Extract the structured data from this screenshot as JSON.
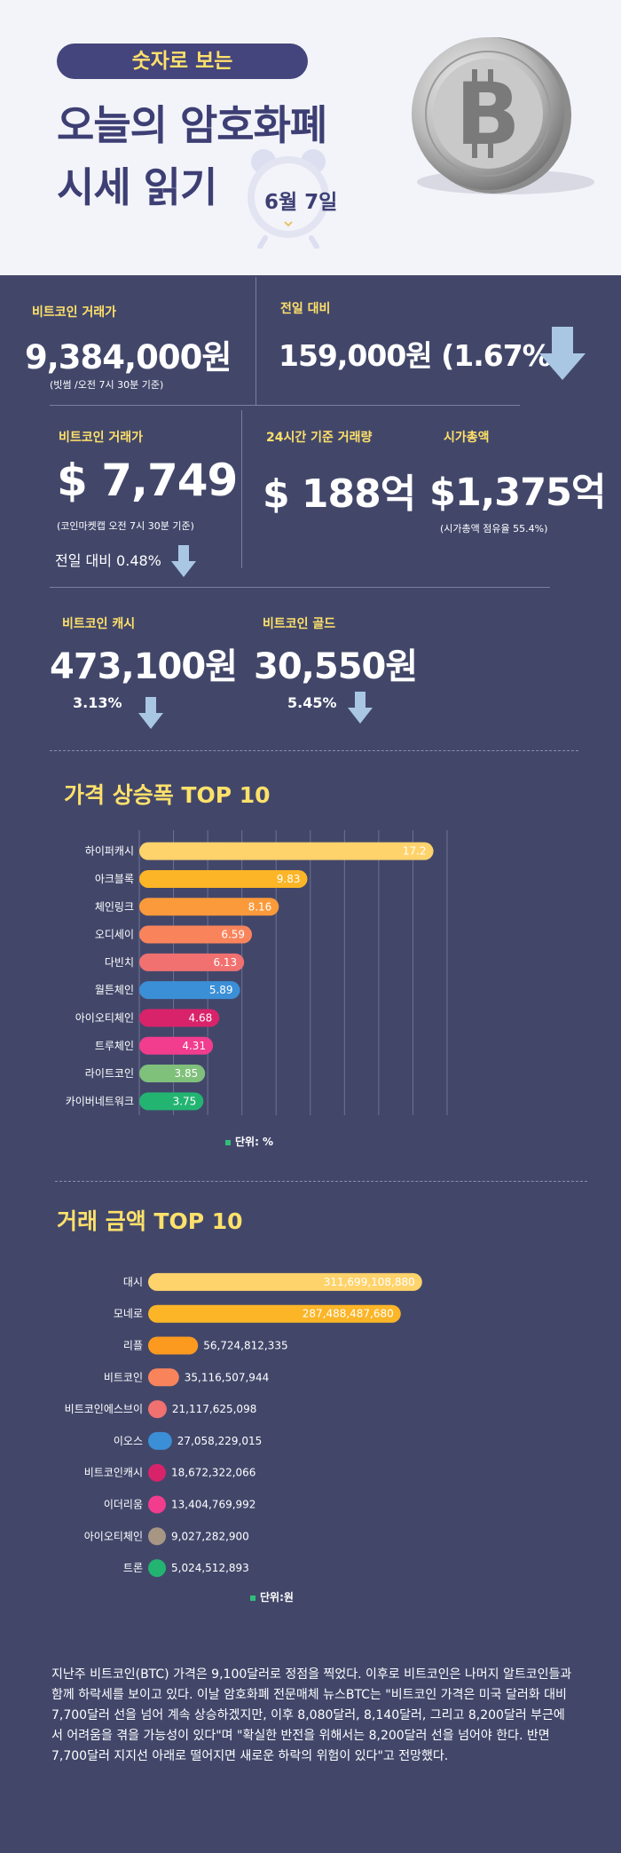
{
  "header": {
    "pill_text": "숫자로 보는",
    "title_line1": "오늘의 암호화폐",
    "title_line2": "시세 읽기",
    "date": "6월 7일"
  },
  "krw": {
    "label": "비트코인 거래가",
    "value": "9,384,000원",
    "note": "(빗썸 /오전 7시 30분 기준)",
    "change_label": "전일 대비",
    "change_value": "159,000원 (1.67%)"
  },
  "usd": {
    "label": "비트코인 거래가",
    "value": "$ 7,749",
    "note": "(코인마켓캡 오전 7시 30분 기준)",
    "change": "전일 대비 0.48%",
    "volume_label": "24시간 기준 거래량",
    "volume_value": "$ 188억",
    "mcap_label": "시가총액",
    "mcap_value": "$1,375억",
    "mcap_note": "(시가총액 점유율 55.4%)"
  },
  "forks": {
    "bch_label": "비트코인 캐시",
    "bch_value": "473,100원",
    "bch_change": "3.13%",
    "btg_label": "비트코인 골드",
    "btg_value": "30,550원",
    "btg_change": "5.45%"
  },
  "chart1_unit": "단위: %",
  "chart2_unit": "단위:원",
  "paragraph": "지난주 비트코인(BTC) 가격은 9,100달러로 정점을 찍었다. 이후로 비트코인은 나머지 알트코인들과 함께 하락세를 보이고 있다. 이날 암호화폐 전문매체 뉴스BTC는 \"비트코인 가격은 미국 달러화 대비 7,700달러 선을 넘어 계속 상승하겠지만, 이후 8,080달러, 8,140달러, 그리고 8,200달러 부근에서 어려움을 겪을 가능성이 있다\"며 \"확실한 반전을 위해서는 8,200달러 선을 넘어야 한다. 반면 7,700달러 지지선 아래로 떨어지면 새로운 하락의 위험이 있다\"고 전망했다.",
  "colors": {
    "bg": "#42476a",
    "accent": "#ffe16a",
    "arrow": "#a9c7e3"
  },
  "chart_data": [
    {
      "type": "bar",
      "orientation": "horizontal",
      "title": "가격 상승폭 TOP 10",
      "unit_label": "단위: %",
      "categories": [
        "하이퍼캐시",
        "아크블록",
        "체인링크",
        "오디세이",
        "다빈치",
        "월튼체인",
        "아이오티체인",
        "트루체인",
        "라이트코인",
        "카이버네트워크"
      ],
      "values": [
        17.2,
        9.83,
        8.16,
        6.59,
        6.13,
        5.89,
        4.68,
        4.31,
        3.85,
        3.75
      ],
      "labels": [
        "17.2",
        "9.83",
        "8.16",
        "6.59",
        "6.13",
        "5.89",
        "4.68",
        "4.31",
        "3.85",
        "3.75"
      ],
      "colors": [
        "#ffd36b",
        "#fbb527",
        "#fb9a3a",
        "#f9845b",
        "#f07170",
        "#3b8fd6",
        "#d8236a",
        "#f23c8e",
        "#7fc07b",
        "#23b472"
      ],
      "xlim": [
        0,
        18
      ],
      "grid": true
    },
    {
      "type": "bar",
      "orientation": "horizontal",
      "title": "거래 금액 TOP 10",
      "unit_label": "단위:원",
      "categories": [
        "대시",
        "모네로",
        "리플",
        "비트코인",
        "비트코인에스브이",
        "이오스",
        "비트코인캐시",
        "이더리움",
        "아이오티체인",
        "트론"
      ],
      "values": [
        311699108880,
        287488487680,
        56724812335,
        35116507944,
        21117625098,
        27058229015,
        18672322066,
        13404769992,
        9027282900,
        5024512893
      ],
      "labels": [
        "311,699,108,880",
        "287,488,487,680",
        "56,724,812,335",
        "35,116,507,944",
        "21,117,625,098",
        "27,058,229,015",
        "18,672,322,066",
        "13,404,769,992",
        "9,027,282,900",
        "5,024,512,893"
      ],
      "colors": [
        "#ffd36b",
        "#fbb527",
        "#fb9a1f",
        "#f9845b",
        "#f07170",
        "#3b8fd6",
        "#d8236a",
        "#f23c8e",
        "#a89684",
        "#23b472"
      ],
      "xlim": [
        0,
        320000000000
      ],
      "grid": false
    }
  ]
}
